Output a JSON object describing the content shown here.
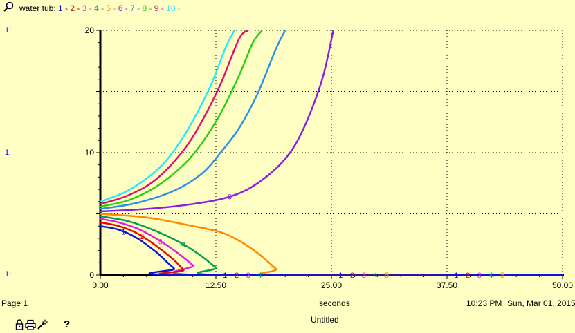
{
  "header": {
    "title": "water tub:",
    "legend_items": [
      {
        "label": "1",
        "color": "#0a14d8"
      },
      {
        "label": "2",
        "color": "#e00a0a"
      },
      {
        "label": "3",
        "color": "#e020e0"
      },
      {
        "label": "4",
        "color": "#00a050"
      },
      {
        "label": "5",
        "color": "#ff8800"
      },
      {
        "label": "6",
        "color": "#8820e0"
      },
      {
        "label": "7",
        "color": "#2a90e8"
      },
      {
        "label": "8",
        "color": "#28d010"
      },
      {
        "label": "9",
        "color": "#e01070"
      },
      {
        "label": "10",
        "color": "#28e8ff"
      }
    ]
  },
  "axis_markers": [
    "1:",
    "1:",
    "1:"
  ],
  "footer": {
    "page": "Page 1",
    "xlabel": "seconds",
    "time": "10:23 PM",
    "date": "Sun, Mar 01, 2015",
    "doc_title": "Untitled"
  },
  "chart_data": {
    "type": "line",
    "title": "water tub",
    "xlabel": "seconds",
    "ylabel": "",
    "xlim": [
      0,
      50
    ],
    "ylim": [
      0,
      20
    ],
    "x_ticks": [
      "0.00",
      "12.50",
      "25.00",
      "37.50",
      "50.00"
    ],
    "y_ticks": [
      "0",
      "10",
      "20"
    ],
    "grid": true,
    "legend": "top-left",
    "series": [
      {
        "name": "1",
        "color": "#0a14d8",
        "x": [
          0,
          2,
          4,
          6,
          7,
          8,
          8.5,
          50
        ],
        "y": [
          4.0,
          3.7,
          3.0,
          1.9,
          1.2,
          0.5,
          0,
          0
        ]
      },
      {
        "name": "2",
        "color": "#e00a0a",
        "x": [
          0,
          2,
          4,
          6,
          8,
          9,
          9.5,
          50
        ],
        "y": [
          4.3,
          4.0,
          3.4,
          2.4,
          1.2,
          0.4,
          0,
          0
        ]
      },
      {
        "name": "3",
        "color": "#e020e0",
        "x": [
          0,
          2,
          4,
          6,
          8,
          10,
          11,
          50
        ],
        "y": [
          4.6,
          4.3,
          3.8,
          3.0,
          2.0,
          0.8,
          0,
          0
        ]
      },
      {
        "name": "4",
        "color": "#00a050",
        "x": [
          0,
          3,
          6,
          9,
          11,
          12.5,
          13.5,
          50
        ],
        "y": [
          4.8,
          4.4,
          3.6,
          2.5,
          1.5,
          0.6,
          0,
          0
        ]
      },
      {
        "name": "5",
        "color": "#ff8800",
        "x": [
          0,
          5,
          10,
          13,
          15,
          17,
          19,
          19.7,
          50
        ],
        "y": [
          5.0,
          4.7,
          4.0,
          3.5,
          2.8,
          1.8,
          0.5,
          0,
          0
        ]
      },
      {
        "name": "6",
        "color": "#8820e0",
        "x": [
          0,
          5,
          10,
          14,
          17,
          20,
          22,
          24,
          25.2
        ],
        "y": [
          5.2,
          5.4,
          5.8,
          6.4,
          7.5,
          9.5,
          12,
          16,
          20
        ]
      },
      {
        "name": "7",
        "color": "#2a90e8",
        "x": [
          0,
          4,
          8,
          11,
          13,
          15,
          17,
          19,
          20
        ],
        "y": [
          5.4,
          5.9,
          6.9,
          8.3,
          10,
          12,
          14.8,
          18.5,
          20
        ]
      },
      {
        "name": "8",
        "color": "#28d010",
        "x": [
          0,
          3,
          6,
          9,
          11,
          13,
          15,
          16.5,
          17.5
        ],
        "y": [
          5.6,
          6.1,
          7.2,
          9.0,
          10.8,
          13.2,
          16.3,
          19,
          20
        ]
      },
      {
        "name": "9",
        "color": "#e01070",
        "x": [
          0,
          3,
          6,
          9,
          11,
          13,
          15,
          16
        ],
        "y": [
          5.8,
          6.5,
          7.8,
          10.2,
          12.6,
          15.6,
          19.3,
          20
        ]
      },
      {
        "name": "10",
        "color": "#28e8ff",
        "x": [
          0,
          3,
          6,
          8,
          10,
          12,
          13.5,
          14.5
        ],
        "y": [
          6.0,
          6.9,
          8.5,
          10.2,
          12.6,
          15.6,
          18.5,
          20
        ]
      }
    ]
  }
}
